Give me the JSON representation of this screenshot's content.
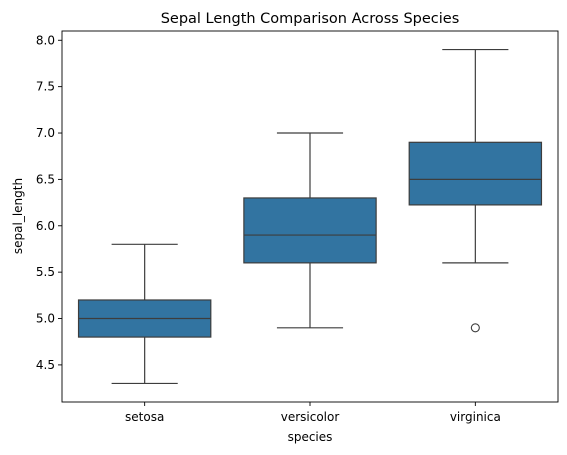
{
  "chart_data": {
    "type": "box",
    "title": "Sepal Length Comparison Across Species",
    "xlabel": "species",
    "ylabel": "sepal_length",
    "ylim": [
      4.1,
      8.1
    ],
    "yticks": [
      4.5,
      5.0,
      5.5,
      6.0,
      6.5,
      7.0,
      7.5,
      8.0
    ],
    "ytick_labels": [
      "4.5",
      "5.0",
      "5.5",
      "6.0",
      "6.5",
      "7.0",
      "7.5",
      "8.0"
    ],
    "categories": [
      "setosa",
      "versicolor",
      "virginica"
    ],
    "boxes": [
      {
        "category": "setosa",
        "whisker_low": 4.3,
        "q1": 4.8,
        "median": 5.0,
        "q3": 5.2,
        "whisker_high": 5.8,
        "outliers": []
      },
      {
        "category": "versicolor",
        "whisker_low": 4.9,
        "q1": 5.6,
        "median": 5.9,
        "q3": 6.3,
        "whisker_high": 7.0,
        "outliers": []
      },
      {
        "category": "virginica",
        "whisker_low": 5.6,
        "q1": 6.225,
        "median": 6.5,
        "q3": 6.9,
        "whisker_high": 7.9,
        "outliers": [
          4.9
        ]
      }
    ],
    "grid": false,
    "colors": {
      "box_fill": "#3274a1",
      "line": "#3d3d3d",
      "axes": "#000000"
    }
  }
}
